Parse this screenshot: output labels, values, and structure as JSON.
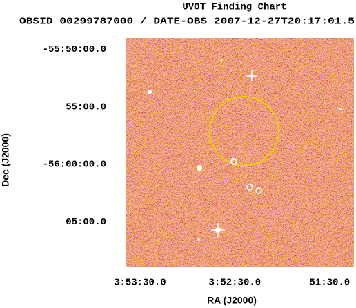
{
  "chart_data": {
    "type": "image",
    "title": "UVOT Finding Chart",
    "subtitle": "OBSID 00299787000 / DATE-OBS 2007-12-27T20:17:01.5",
    "x_label": "RA (J2000)",
    "y_label": "Dec (J2000)",
    "xlim": [
      58.413,
      57.811
    ],
    "ylim": [
      -56.148,
      -55.817
    ],
    "xticks": [
      {
        "value": 58.375,
        "label": "3:53:30.0"
      },
      {
        "value": 58.125,
        "label": "3:52:30.0"
      },
      {
        "value": 57.875,
        "label": "51:30.0"
      }
    ],
    "yticks": [
      {
        "value": -55.8333,
        "label": "-55:50:00.0"
      },
      {
        "value": -55.9167,
        "label": "55:00.0"
      },
      {
        "value": -56.0,
        "label": "-56:00:00.0"
      },
      {
        "value": -56.0833,
        "label": "05:00.0"
      }
    ]
  }
}
